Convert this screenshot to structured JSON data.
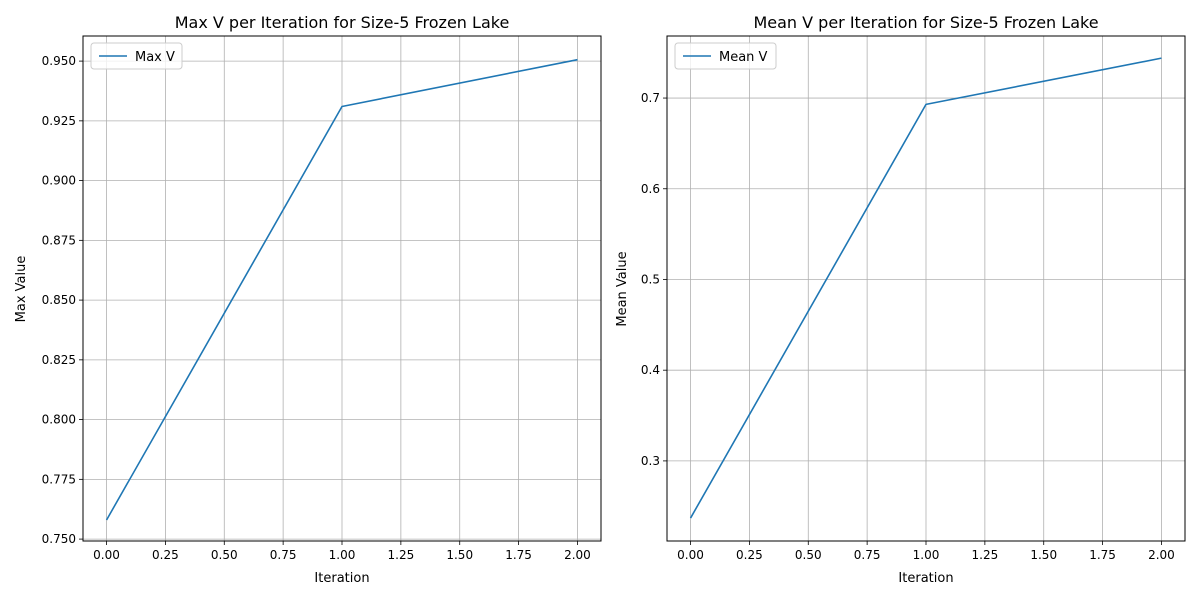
{
  "chart_data": [
    {
      "type": "line",
      "title": "Max V per Iteration for Size-5 Frozen Lake",
      "xlabel": "Iteration",
      "ylabel": "Max Value",
      "xlim": [
        -0.1,
        2.1
      ],
      "ylim": [
        0.7492,
        0.9605
      ],
      "xticks": [
        "0.00",
        "0.25",
        "0.50",
        "0.75",
        "1.00",
        "1.25",
        "1.50",
        "1.75",
        "2.00"
      ],
      "yticks": [
        "0.750",
        "0.775",
        "0.800",
        "0.825",
        "0.850",
        "0.875",
        "0.900",
        "0.925",
        "0.950"
      ],
      "grid": true,
      "legend_position": "top-left",
      "series": [
        {
          "name": "Max V",
          "color": "#1f77b4",
          "x": [
            0,
            1,
            2
          ],
          "y": [
            0.758,
            0.931,
            0.9506
          ]
        }
      ]
    },
    {
      "type": "line",
      "title": "Mean V per Iteration for Size-5 Frozen Lake",
      "xlabel": "Iteration",
      "ylabel": "Mean Value",
      "xlim": [
        -0.1,
        2.1
      ],
      "ylim": [
        0.2117,
        0.7684
      ],
      "xticks": [
        "0.00",
        "0.25",
        "0.50",
        "0.75",
        "1.00",
        "1.25",
        "1.50",
        "1.75",
        "2.00"
      ],
      "yticks": [
        "0.3",
        "0.4",
        "0.5",
        "0.6",
        "0.7"
      ],
      "grid": true,
      "legend_position": "top-left",
      "series": [
        {
          "name": "Mean V",
          "color": "#1f77b4",
          "x": [
            0,
            1,
            2
          ],
          "y": [
            0.237,
            0.693,
            0.744
          ]
        }
      ]
    }
  ]
}
